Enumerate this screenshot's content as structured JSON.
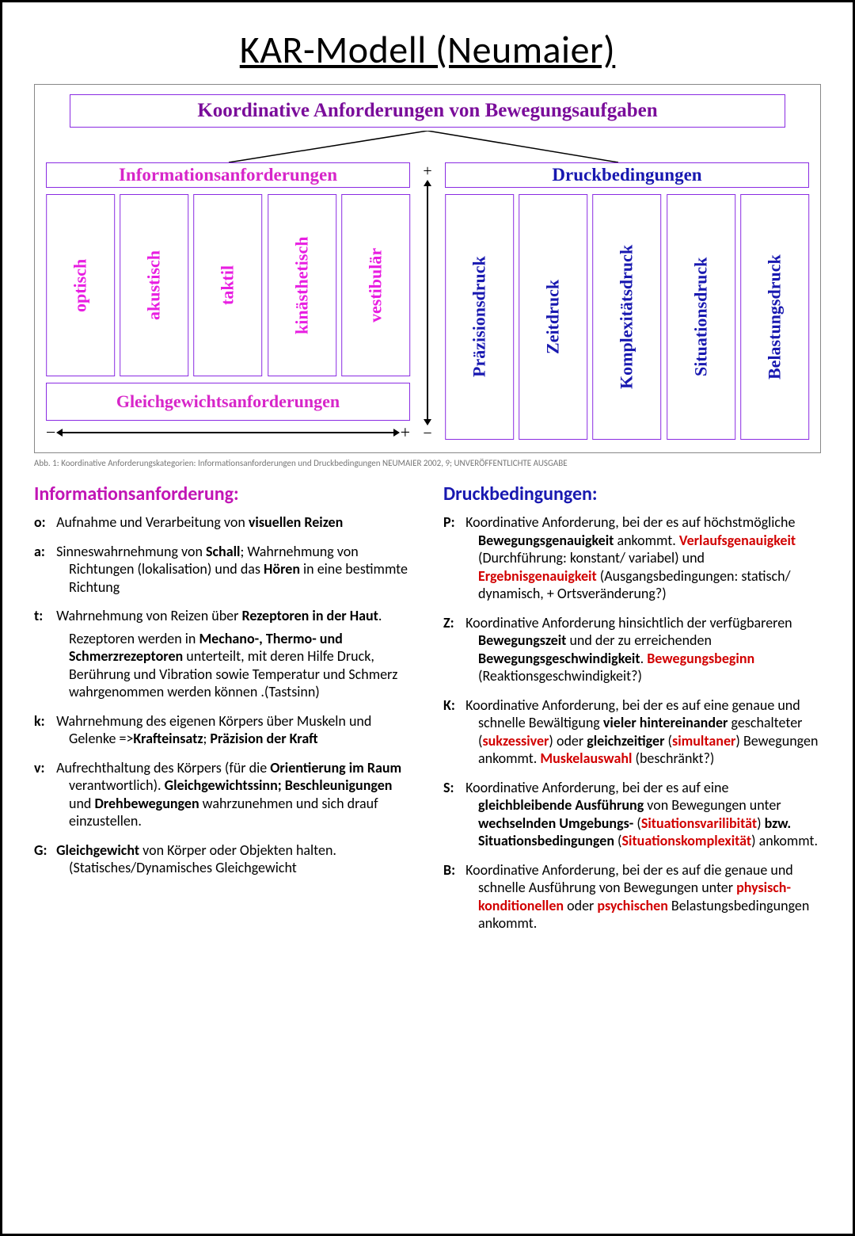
{
  "title": "KAR-Modell (Neumaier)",
  "diagram": {
    "top": "Koordinative Anforderungen von Bewegungsaufgaben",
    "left_cat": "Informationsanforderungen",
    "right_cat": "Druckbedingungen",
    "left_cells": [
      "optisch",
      "akustisch",
      "taktil",
      "kinästhetisch",
      "vestibulär"
    ],
    "right_cells": [
      "Präzisionsdruck",
      "Zeitdruck",
      "Komplexitätsdruck",
      "Situationsdruck",
      "Belastungsdruck"
    ],
    "gbox": "Gleichgewichtsanforderungen",
    "colors": {
      "border": "#8a2be2",
      "left_text": "#e81ee1",
      "left_cat_text": "#d726c9",
      "right_text": "#1818b0",
      "top_text": "#7a0d9a"
    },
    "caption": "Abb. 1: Koordinative Anforderungskategorien: Informationsanforderungen und Druckbedingungen NEUMAIER 2002, 9; UNVERÖFFENTLICHTE AUSGABE"
  },
  "definitions": {
    "left": {
      "heading": "Informationsanforderung:",
      "heading_color": "#c115b5",
      "items": [
        {
          "key": "o:",
          "html": "Aufnahme und Verarbeitung von <b>visuellen Reizen</b>"
        },
        {
          "key": "a:",
          "html": "Sinneswahrnehmung von <b>Schall</b>; Wahrnehmung von Richtungen (lokalisation) und das <b>Hören</b> in eine bestimmte Richtung"
        },
        {
          "key": "t:",
          "html": "Wahrnehmung von Reizen über <b>Rezeptoren in der Haut</b>.<span class='sub'>Rezeptoren werden in <b>Mechano-, Thermo- und Schmerzrezeptoren</b> unterteilt, mit deren Hilfe Druck, Berührung und Vibration sowie Temperatur und Schmerz wahrgenommen werden können .(Tastsinn)</span>"
        },
        {
          "key": "k:",
          "html": "Wahrnehmung des eigenen Körpers über Muskeln und Gelenke =><b>Krafteinsatz</b>; <b>Präzision der Kraft</b>"
        },
        {
          "key": "v:",
          "html": "Aufrechthaltung des Körpers (für die <b>Orientierung im Raum</b> verantwortlich). <b>Gleichgewichtssinn; Beschleunigungen</b> und <b>Drehbewegungen</b> wahrzunehmen und sich drauf einzustellen."
        },
        {
          "key": "G:",
          "html": "<b>Gleichgewicht</b> von Körper oder Objekten halten. (Statisches/Dynamisches Gleichgewicht"
        }
      ]
    },
    "right": {
      "heading": "Druckbedingungen:",
      "heading_color": "#1818b0",
      "items": [
        {
          "key": "P:",
          "html": "Koordinative Anforderung, bei der es auf höchstmögliche <b>Bewegungsgenauigkeit</b> ankommt. <span class='red'>Verlaufsgenauigkeit</span> (Durchführung: konstant/ variabel) und <span class='red'>Ergebnisgenauigkeit</span> (Ausgangsbedingungen: statisch/ dynamisch, + Ortsveränderung?)"
        },
        {
          "key": "Z:",
          "html": "Koordinative Anforderung hinsichtlich der verfügbareren <b>Bewegungszeit</b> und der zu erreichenden <b>Bewegungsgeschwindigkeit</b>. <span class='red'>Bewegungsbeginn</span> (Reaktionsgeschwindigkeit?)"
        },
        {
          "key": "K:",
          "html": "Koordinative Anforderung, bei der es auf eine genaue und schnelle Bewältigung <b>vieler hintereinander</b> geschalteter (<span class='red'>sukzessiver</span>) oder <b>gleichzeitiger</b> (<span class='red'>simultaner</span>) Bewegungen ankommt. <span class='red'>Muskelauswahl</span> (beschränkt?)"
        },
        {
          "key": "S:",
          "html": "Koordinative Anforderung, bei der es auf eine <b>gleichbleibende Ausführung</b> von Bewegungen unter <b>wechselnden Umgebungs-</b> (<span class='red'>Situationsvarilibität</span>) <b>bzw. Situationsbedingungen</b> (<span class='red'>Situationskomplexität</span>) ankommt."
        },
        {
          "key": "B:",
          "html": "Koordinative Anforderung, bei der es auf die genaue und schnelle Ausführung von Bewegungen unter <span class='red'>physisch-konditionellen</span> oder <span class='red'>psychischen</span> Belastungsbedingungen ankommt."
        }
      ]
    }
  }
}
